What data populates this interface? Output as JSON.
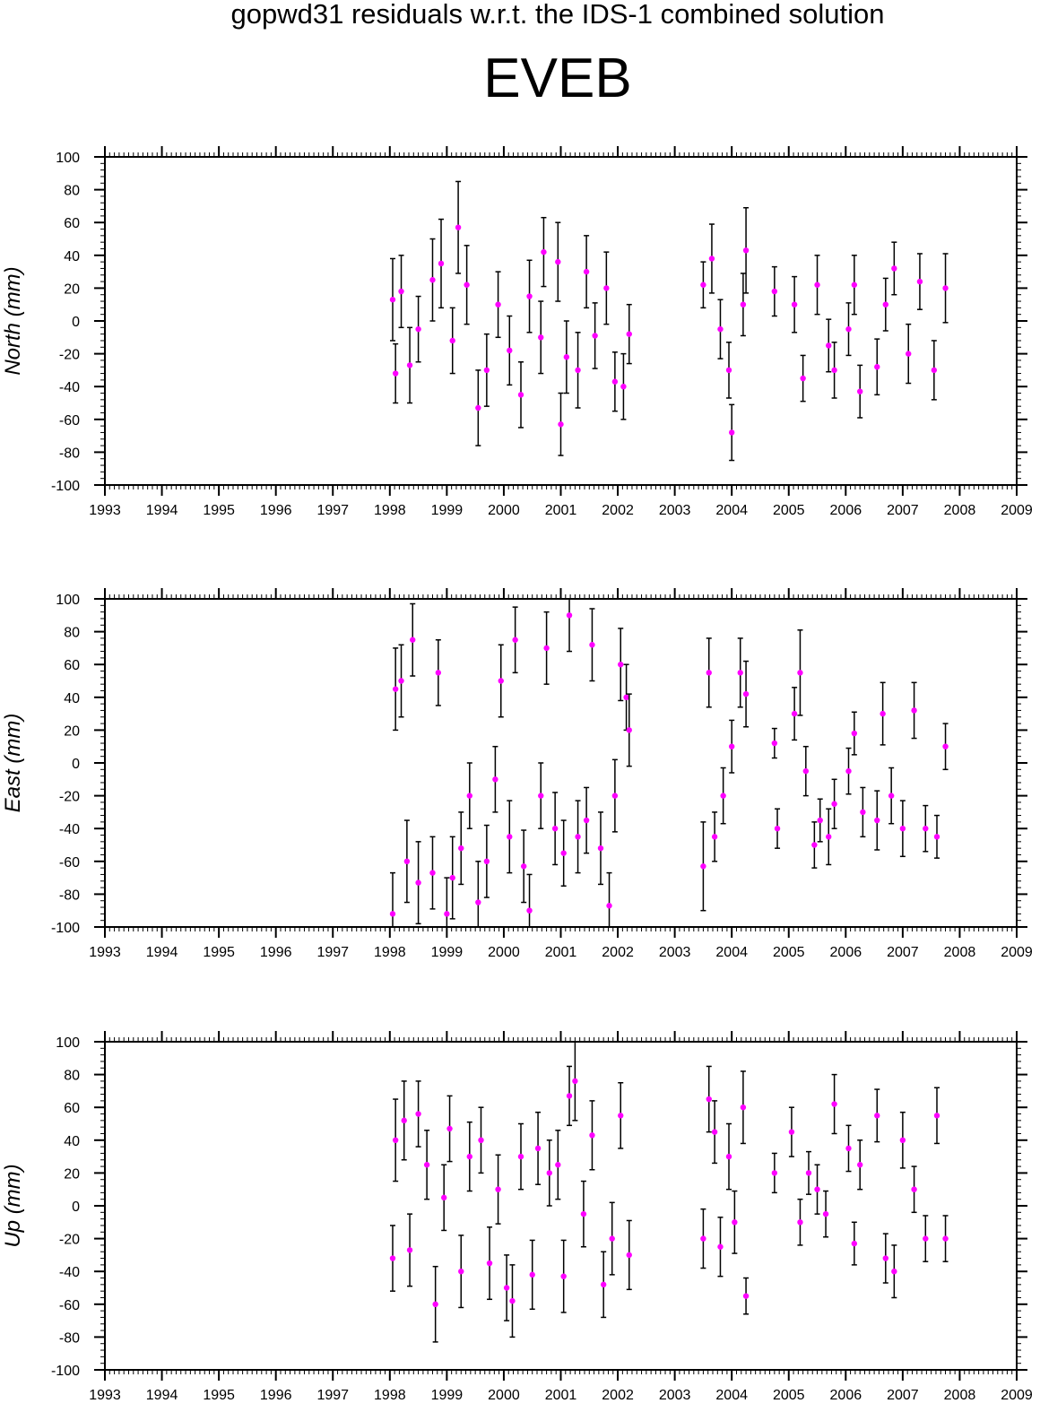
{
  "figure": {
    "subtitle": "gopwd31 residuals w.r.t. the IDS-1 combined solution",
    "station": "EVEB",
    "marker_color": "#ff00ff",
    "errorbar_color": "#000000"
  },
  "chart_data": [
    {
      "type": "scatter",
      "ylabel": "North (mm)",
      "ylim": [
        -100,
        100
      ],
      "xlim": [
        1993,
        2009
      ],
      "x_ticks": [
        "1993",
        "1994",
        "1995",
        "1996",
        "1997",
        "1998",
        "1999",
        "2000",
        "2001",
        "2002",
        "2003",
        "2004",
        "2005",
        "2006",
        "2007",
        "2008",
        "2009"
      ],
      "y_ticks": [
        "100",
        "80",
        "60",
        "40",
        "20",
        "0",
        "-20",
        "-40",
        "-60",
        "-80",
        "-100"
      ],
      "grid": false,
      "series": [
        {
          "x": [
            1998.05,
            1998.1,
            1998.2,
            1998.35,
            1998.5,
            1998.75,
            1998.9,
            1999.1,
            1999.2,
            1999.35,
            1999.55,
            1999.7,
            1999.9,
            2000.1,
            2000.3,
            2000.45,
            2000.65,
            2000.7,
            2000.95,
            2001.0,
            2001.1,
            2001.3,
            2001.45,
            2001.6,
            2001.8,
            2001.95,
            2002.1,
            2002.2,
            2003.5,
            2003.65,
            2003.8,
            2003.95,
            2004.0,
            2004.2,
            2004.25,
            2004.75,
            2005.1,
            2005.25,
            2005.5,
            2005.7,
            2005.8,
            2006.05,
            2006.15,
            2006.25,
            2006.55,
            2006.7,
            2006.85,
            2007.1,
            2007.3,
            2007.55,
            2007.75
          ],
          "y": [
            13,
            -32,
            18,
            -27,
            -5,
            25,
            35,
            -12,
            57,
            22,
            -53,
            -30,
            10,
            -18,
            -45,
            15,
            -10,
            42,
            36,
            -63,
            -22,
            -30,
            30,
            -9,
            20,
            -37,
            -40,
            -8,
            22,
            38,
            -5,
            -30,
            -68,
            10,
            43,
            18,
            10,
            -35,
            22,
            -15,
            -30,
            -5,
            22,
            -43,
            -28,
            10,
            32,
            -20,
            24,
            -30,
            20
          ],
          "y_err": [
            25,
            18,
            22,
            23,
            20,
            25,
            27,
            20,
            28,
            24,
            23,
            22,
            20,
            21,
            20,
            22,
            22,
            21,
            24,
            19,
            22,
            23,
            22,
            20,
            22,
            18,
            20,
            18,
            14,
            21,
            18,
            17,
            17,
            19,
            26,
            15,
            17,
            14,
            18,
            16,
            17,
            16,
            18,
            16,
            17,
            16,
            16,
            18,
            17,
            18,
            21
          ]
        }
      ]
    },
    {
      "type": "scatter",
      "ylabel": "East (mm)",
      "ylim": [
        -100,
        100
      ],
      "xlim": [
        1993,
        2009
      ],
      "x_ticks": [
        "1993",
        "1994",
        "1995",
        "1996",
        "1997",
        "1998",
        "1999",
        "2000",
        "2001",
        "2002",
        "2003",
        "2004",
        "2005",
        "2006",
        "2007",
        "2008",
        "2009"
      ],
      "y_ticks": [
        "100",
        "80",
        "60",
        "40",
        "20",
        "0",
        "-20",
        "-40",
        "-60",
        "-80",
        "-100"
      ],
      "grid": false,
      "series": [
        {
          "x": [
            1998.05,
            1998.1,
            1998.2,
            1998.3,
            1998.4,
            1998.5,
            1998.75,
            1998.85,
            1999.0,
            1999.1,
            1999.25,
            1999.4,
            1999.55,
            1999.7,
            1999.85,
            1999.95,
            2000.1,
            2000.2,
            2000.35,
            2000.45,
            2000.65,
            2000.75,
            2000.9,
            2001.05,
            2001.15,
            2001.3,
            2001.45,
            2001.55,
            2001.7,
            2001.85,
            2001.95,
            2002.05,
            2002.15,
            2002.2,
            2003.5,
            2003.6,
            2003.7,
            2003.85,
            2004.0,
            2004.15,
            2004.25,
            2004.75,
            2004.8,
            2005.1,
            2005.2,
            2005.3,
            2005.45,
            2005.55,
            2005.7,
            2005.8,
            2006.05,
            2006.15,
            2006.3,
            2006.55,
            2006.65,
            2006.8,
            2007.0,
            2007.2,
            2007.4,
            2007.6,
            2007.75
          ],
          "y": [
            -92,
            45,
            50,
            -60,
            75,
            -73,
            -67,
            55,
            -92,
            -70,
            -52,
            -20,
            -85,
            -60,
            -10,
            50,
            -45,
            75,
            -63,
            -90,
            -20,
            70,
            -40,
            -55,
            90,
            -45,
            -35,
            72,
            -52,
            -87,
            -20,
            60,
            40,
            20,
            -63,
            55,
            -45,
            -20,
            10,
            55,
            42,
            12,
            -40,
            30,
            55,
            -5,
            -50,
            -35,
            -45,
            -25,
            -5,
            18,
            -30,
            -35,
            30,
            -20,
            -40,
            32,
            -40,
            -45,
            10
          ],
          "y_err": [
            25,
            25,
            22,
            25,
            22,
            25,
            22,
            20,
            22,
            25,
            22,
            20,
            25,
            22,
            20,
            22,
            22,
            20,
            22,
            22,
            20,
            22,
            22,
            20,
            22,
            22,
            20,
            22,
            22,
            20,
            22,
            22,
            20,
            22,
            27,
            21,
            15,
            17,
            16,
            21,
            20,
            9,
            12,
            16,
            26,
            15,
            14,
            13,
            17,
            15,
            14,
            13,
            15,
            18,
            19,
            17,
            17,
            17,
            14,
            13,
            14
          ]
        }
      ]
    },
    {
      "type": "scatter",
      "ylabel": "Up (mm)",
      "ylim": [
        -100,
        100
      ],
      "xlim": [
        1993,
        2009
      ],
      "x_ticks": [
        "1993",
        "1994",
        "1995",
        "1996",
        "1997",
        "1998",
        "1999",
        "2000",
        "2001",
        "2002",
        "2003",
        "2004",
        "2005",
        "2006",
        "2007",
        "2008",
        "2009"
      ],
      "y_ticks": [
        "100",
        "80",
        "60",
        "40",
        "20",
        "0",
        "-20",
        "-40",
        "-60",
        "-80",
        "-100"
      ],
      "grid": false,
      "series": [
        {
          "x": [
            1998.05,
            1998.1,
            1998.25,
            1998.35,
            1998.5,
            1998.65,
            1998.8,
            1998.95,
            1999.05,
            1999.25,
            1999.4,
            1999.6,
            1999.75,
            1999.9,
            2000.05,
            2000.15,
            2000.3,
            2000.5,
            2000.6,
            2000.8,
            2000.95,
            2001.05,
            2001.15,
            2001.25,
            2001.4,
            2001.55,
            2001.75,
            2001.9,
            2002.05,
            2002.2,
            2003.5,
            2003.6,
            2003.7,
            2003.8,
            2003.95,
            2004.05,
            2004.2,
            2004.25,
            2004.75,
            2005.05,
            2005.2,
            2005.35,
            2005.5,
            2005.65,
            2005.8,
            2006.05,
            2006.15,
            2006.25,
            2006.55,
            2006.7,
            2006.85,
            2007.0,
            2007.2,
            2007.4,
            2007.6,
            2007.75
          ],
          "y": [
            -32,
            40,
            52,
            -27,
            56,
            25,
            -60,
            5,
            47,
            -40,
            30,
            40,
            -35,
            10,
            -50,
            -58,
            30,
            -42,
            35,
            20,
            25,
            -43,
            67,
            76,
            -5,
            43,
            -48,
            -20,
            55,
            -30,
            -20,
            65,
            45,
            -25,
            30,
            -10,
            60,
            -55,
            20,
            45,
            -10,
            20,
            10,
            -5,
            62,
            35,
            -23,
            25,
            55,
            -32,
            -40,
            40,
            10,
            -20,
            55,
            -20
          ],
          "y_err": [
            20,
            25,
            24,
            22,
            20,
            21,
            23,
            20,
            20,
            22,
            21,
            20,
            22,
            21,
            20,
            22,
            20,
            21,
            22,
            20,
            21,
            22,
            18,
            24,
            20,
            21,
            20,
            22,
            20,
            21,
            18,
            20,
            19,
            18,
            20,
            19,
            22,
            11,
            12,
            15,
            14,
            13,
            15,
            14,
            18,
            14,
            13,
            15,
            16,
            15,
            16,
            17,
            14,
            14,
            17,
            14
          ]
        }
      ]
    }
  ]
}
